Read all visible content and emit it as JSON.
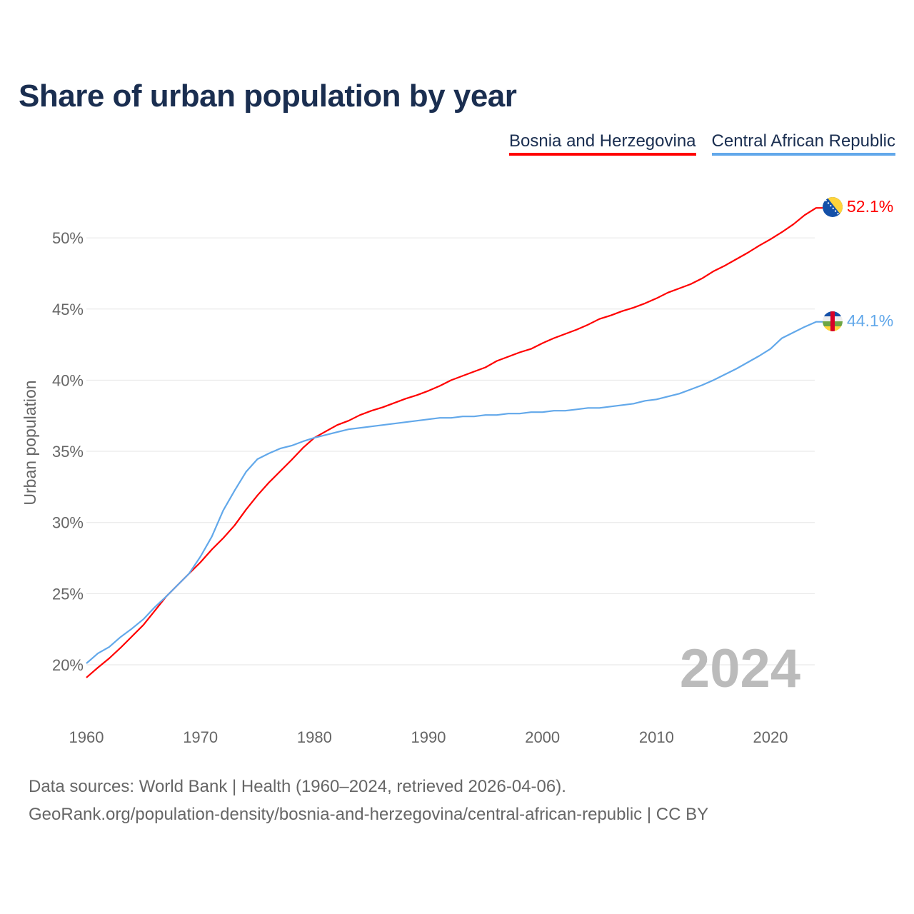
{
  "title": "Share of urban population by year",
  "year_watermark": "2024",
  "footer": {
    "line1": "Data sources: World Bank | Health (1960–2024, retrieved 2026-04-06).",
    "line2": "GeoRank.org/population-density/bosnia-and-herzegovina/central-african-republic | CC BY"
  },
  "chart_data": {
    "type": "line",
    "title": "Share of urban population by year",
    "xlabel": "",
    "ylabel": "Urban population",
    "xlim": [
      1960,
      2024
    ],
    "ylim": [
      18,
      53
    ],
    "x_ticks": [
      1960,
      1970,
      1980,
      1990,
      2000,
      2010,
      2020
    ],
    "y_ticks": [
      20,
      25,
      30,
      35,
      40,
      45,
      50
    ],
    "y_tick_labels": [
      "20%",
      "25%",
      "30%",
      "35%",
      "40%",
      "45%",
      "50%"
    ],
    "x_start": 1960,
    "series": [
      {
        "name": "Bosnia and Herzegovina",
        "color": "#ff0000",
        "end_label": "52.1%",
        "flag": "bosnia-flag",
        "values": [
          19.1,
          19.8,
          20.45,
          21.2,
          22.0,
          22.8,
          23.8,
          24.8,
          25.6,
          26.4,
          27.2,
          28.1,
          28.9,
          29.8,
          30.9,
          31.9,
          32.8,
          33.6,
          34.4,
          35.25,
          35.95,
          36.4,
          36.85,
          37.15,
          37.55,
          37.85,
          38.1,
          38.4,
          38.7,
          38.95,
          39.25,
          39.6,
          40.0,
          40.3,
          40.6,
          40.9,
          41.35,
          41.65,
          41.95,
          42.2,
          42.6,
          42.95,
          43.25,
          43.55,
          43.9,
          44.3,
          44.55,
          44.85,
          45.1,
          45.4,
          45.75,
          46.15,
          46.45,
          46.75,
          47.15,
          47.65,
          48.05,
          48.5,
          48.95,
          49.45,
          49.9,
          50.4,
          50.95,
          51.6,
          52.1
        ]
      },
      {
        "name": "Central African Republic",
        "color": "#62a8ea",
        "end_label": "44.1%",
        "flag": "car-flag",
        "values": [
          20.1,
          20.8,
          21.25,
          21.95,
          22.55,
          23.2,
          24.05,
          24.8,
          25.6,
          26.4,
          27.6,
          29.0,
          30.85,
          32.25,
          33.55,
          34.45,
          34.85,
          35.2,
          35.4,
          35.7,
          35.95,
          36.15,
          36.35,
          36.55,
          36.65,
          36.75,
          36.85,
          36.95,
          37.05,
          37.15,
          37.25,
          37.35,
          37.35,
          37.45,
          37.45,
          37.55,
          37.55,
          37.65,
          37.65,
          37.75,
          37.75,
          37.85,
          37.85,
          37.95,
          38.05,
          38.05,
          38.15,
          38.25,
          38.35,
          38.55,
          38.65,
          38.85,
          39.05,
          39.35,
          39.65,
          40.0,
          40.4,
          40.8,
          41.25,
          41.7,
          42.2,
          42.95,
          43.35,
          43.75,
          44.1
        ]
      }
    ]
  }
}
